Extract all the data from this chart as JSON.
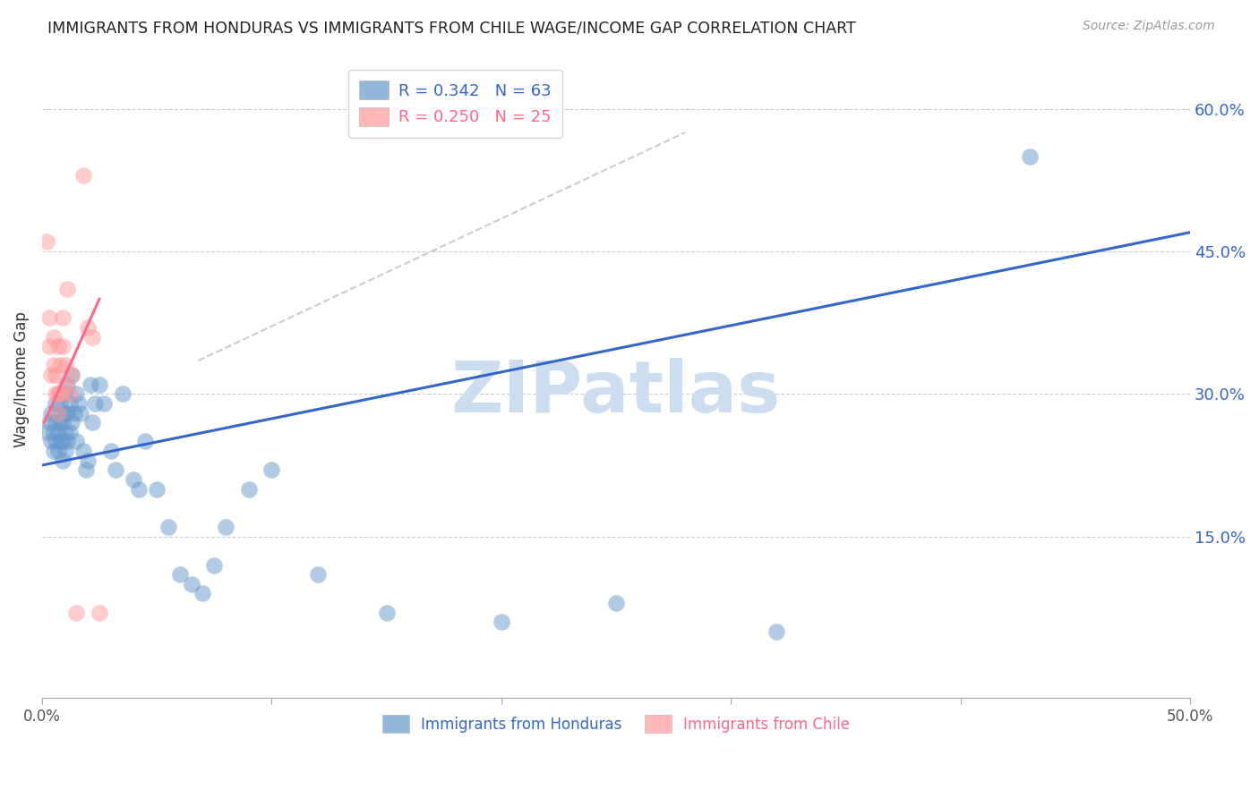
{
  "title": "IMMIGRANTS FROM HONDURAS VS IMMIGRANTS FROM CHILE WAGE/INCOME GAP CORRELATION CHART",
  "source": "Source: ZipAtlas.com",
  "ylabel": "Wage/Income Gap",
  "ytick_labels": [
    "60.0%",
    "45.0%",
    "30.0%",
    "15.0%"
  ],
  "ytick_values": [
    0.6,
    0.45,
    0.3,
    0.15
  ],
  "xlim": [
    0.0,
    0.5
  ],
  "ylim": [
    -0.02,
    0.65
  ],
  "honduras_color": "#6699cc",
  "chile_color": "#ff9999",
  "honduras_line_color": "#3366cc",
  "chile_line_color": "#ff6688",
  "dashed_line_color": "#cccccc",
  "watermark": "ZIPatlas",
  "watermark_color": "#ccddf0",
  "honduras_x": [
    0.002,
    0.003,
    0.004,
    0.004,
    0.005,
    0.005,
    0.006,
    0.006,
    0.006,
    0.007,
    0.007,
    0.007,
    0.008,
    0.008,
    0.008,
    0.009,
    0.009,
    0.009,
    0.01,
    0.01,
    0.01,
    0.01,
    0.011,
    0.011,
    0.011,
    0.012,
    0.012,
    0.013,
    0.013,
    0.014,
    0.015,
    0.015,
    0.016,
    0.017,
    0.018,
    0.019,
    0.02,
    0.021,
    0.022,
    0.023,
    0.025,
    0.027,
    0.03,
    0.032,
    0.035,
    0.04,
    0.042,
    0.045,
    0.05,
    0.055,
    0.06,
    0.065,
    0.07,
    0.075,
    0.08,
    0.09,
    0.1,
    0.12,
    0.15,
    0.2,
    0.25,
    0.32,
    0.43
  ],
  "honduras_y": [
    0.26,
    0.27,
    0.25,
    0.28,
    0.24,
    0.26,
    0.25,
    0.27,
    0.29,
    0.24,
    0.26,
    0.28,
    0.25,
    0.27,
    0.29,
    0.23,
    0.25,
    0.27,
    0.24,
    0.26,
    0.28,
    0.3,
    0.25,
    0.28,
    0.31,
    0.26,
    0.29,
    0.27,
    0.32,
    0.28,
    0.25,
    0.3,
    0.29,
    0.28,
    0.24,
    0.22,
    0.23,
    0.31,
    0.27,
    0.29,
    0.31,
    0.29,
    0.24,
    0.22,
    0.3,
    0.21,
    0.2,
    0.25,
    0.2,
    0.16,
    0.11,
    0.1,
    0.09,
    0.12,
    0.16,
    0.2,
    0.22,
    0.11,
    0.07,
    0.06,
    0.08,
    0.05,
    0.55
  ],
  "chile_x": [
    0.002,
    0.003,
    0.003,
    0.004,
    0.005,
    0.005,
    0.006,
    0.006,
    0.007,
    0.007,
    0.007,
    0.008,
    0.008,
    0.009,
    0.009,
    0.01,
    0.01,
    0.011,
    0.012,
    0.013,
    0.015,
    0.018,
    0.02,
    0.022,
    0.025
  ],
  "chile_y": [
    0.46,
    0.38,
    0.35,
    0.32,
    0.36,
    0.33,
    0.3,
    0.32,
    0.35,
    0.3,
    0.28,
    0.33,
    0.3,
    0.35,
    0.38,
    0.31,
    0.33,
    0.41,
    0.3,
    0.32,
    0.07,
    0.53,
    0.37,
    0.36,
    0.07
  ],
  "blue_line_x0": 0.0,
  "blue_line_y0": 0.225,
  "blue_line_x1": 0.5,
  "blue_line_y1": 0.47,
  "pink_line_x0": 0.001,
  "pink_line_y0": 0.27,
  "pink_line_x1": 0.025,
  "pink_line_y1": 0.4,
  "dash_line_x0": 0.068,
  "dash_line_y0": 0.335,
  "dash_line_x1": 0.28,
  "dash_line_y1": 0.575,
  "background_color": "#ffffff",
  "grid_color": "#cccccc"
}
